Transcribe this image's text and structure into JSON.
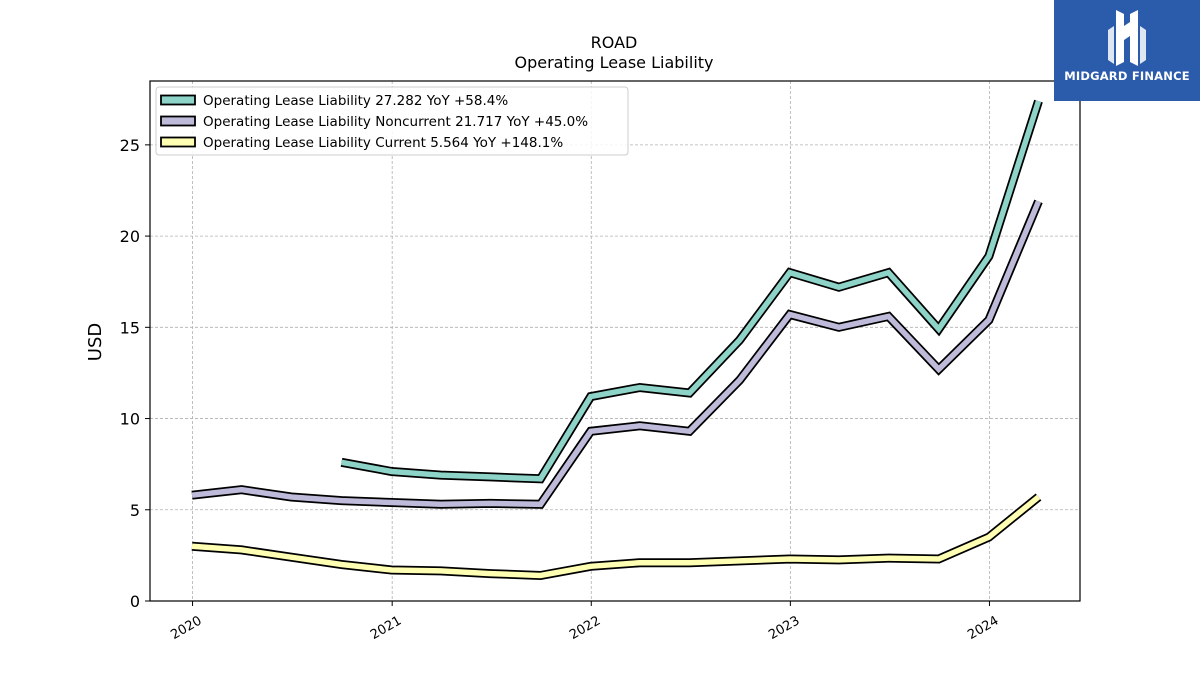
{
  "brand": {
    "name": "MIDGARD FINANCE",
    "logo_icon": "midgard-logo-icon",
    "bg_color": "#2b5bab"
  },
  "chart_data": {
    "type": "line",
    "title": "ROAD",
    "subtitle": "Operating Lease Liability",
    "ylabel": "USD",
    "xlabel": "",
    "ylim": [
      0,
      28.5
    ],
    "xlim": [
      "2019-10-15",
      "2024-06-15"
    ],
    "yticks": [
      0,
      5,
      10,
      15,
      20,
      25
    ],
    "xticks": [
      {
        "date": "2020-01-01",
        "label": "2020"
      },
      {
        "date": "2021-01-01",
        "label": "2021"
      },
      {
        "date": "2022-01-01",
        "label": "2022"
      },
      {
        "date": "2023-01-01",
        "label": "2023"
      },
      {
        "date": "2024-01-01",
        "label": "2024"
      }
    ],
    "grid": true,
    "legend_position": "top-left",
    "series": [
      {
        "name": "Operating Lease Liability",
        "legend_label": "Operating Lease Liability  27.282 YoY +58.4%",
        "color": "#8dd3c7",
        "points": [
          [
            "2020-09-30",
            7.6
          ],
          [
            "2020-12-31",
            7.1
          ],
          [
            "2021-03-31",
            6.9
          ],
          [
            "2021-06-30",
            6.8
          ],
          [
            "2021-09-30",
            6.7
          ],
          [
            "2021-12-31",
            11.2
          ],
          [
            "2022-03-31",
            11.7
          ],
          [
            "2022-06-30",
            11.4
          ],
          [
            "2022-09-30",
            14.3
          ],
          [
            "2022-12-31",
            18.0
          ],
          [
            "2023-03-31",
            17.2
          ],
          [
            "2023-06-30",
            18.0
          ],
          [
            "2023-09-30",
            14.9
          ],
          [
            "2023-12-31",
            18.9
          ],
          [
            "2024-03-31",
            27.4
          ]
        ]
      },
      {
        "name": "Operating Lease Liability Noncurrent",
        "legend_label": "Operating Lease Liability Noncurrent  21.717 YoY +45.0%",
        "color": "#bebada",
        "points": [
          [
            "2019-12-31",
            5.8
          ],
          [
            "2020-03-31",
            6.1
          ],
          [
            "2020-06-30",
            5.7
          ],
          [
            "2020-09-30",
            5.5
          ],
          [
            "2020-12-31",
            5.4
          ],
          [
            "2021-03-31",
            5.3
          ],
          [
            "2021-06-30",
            5.35
          ],
          [
            "2021-09-30",
            5.3
          ],
          [
            "2021-12-31",
            9.3
          ],
          [
            "2022-03-31",
            9.6
          ],
          [
            "2022-06-30",
            9.3
          ],
          [
            "2022-09-30",
            12.1
          ],
          [
            "2022-12-31",
            15.7
          ],
          [
            "2023-03-31",
            15.0
          ],
          [
            "2023-06-30",
            15.6
          ],
          [
            "2023-09-30",
            12.7
          ],
          [
            "2023-12-31",
            15.4
          ],
          [
            "2024-03-31",
            21.9
          ]
        ]
      },
      {
        "name": "Operating Lease Liability Current",
        "legend_label": "Operating Lease Liability Current  5.564 YoY +148.1%",
        "color": "#ffffb3",
        "points": [
          [
            "2019-12-31",
            3.0
          ],
          [
            "2020-03-31",
            2.8
          ],
          [
            "2020-06-30",
            2.4
          ],
          [
            "2020-09-30",
            2.0
          ],
          [
            "2020-12-31",
            1.7
          ],
          [
            "2021-03-31",
            1.65
          ],
          [
            "2021-06-30",
            1.5
          ],
          [
            "2021-09-30",
            1.4
          ],
          [
            "2021-12-31",
            1.9
          ],
          [
            "2022-03-31",
            2.1
          ],
          [
            "2022-06-30",
            2.1
          ],
          [
            "2022-09-30",
            2.2
          ],
          [
            "2022-12-31",
            2.3
          ],
          [
            "2023-03-31",
            2.25
          ],
          [
            "2023-06-30",
            2.35
          ],
          [
            "2023-09-30",
            2.3
          ],
          [
            "2023-12-31",
            3.5
          ],
          [
            "2024-03-31",
            5.7
          ]
        ]
      }
    ]
  }
}
